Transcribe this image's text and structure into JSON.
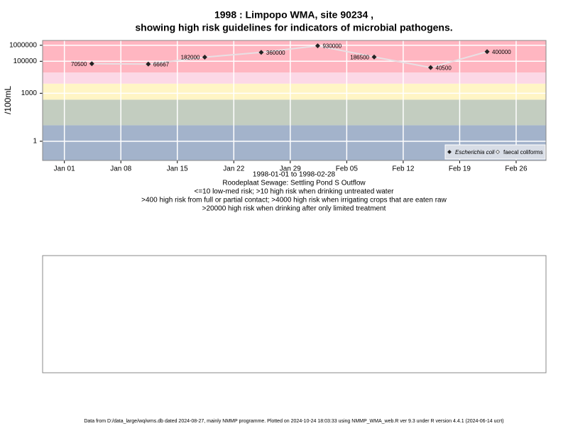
{
  "chart_data": {
    "type": "line",
    "title": "1998 : Limpopo WMA, site 90234 ,",
    "subtitle": "showing high risk guidelines for indicators of microbial pathogens.",
    "y_label": "/100mL",
    "x_label_lines": [
      "1998-01-01 to 1998-02-28",
      "Roodeplaat Sewage: Settling Pond S Outflow",
      "<=10 low-med risk; >10 high risk when drinking untreated water",
      ">400 high risk from full or partial contact; >4000 high risk when irrigating crops that are eaten raw",
      ">20000 high risk when drinking after only limited treatment"
    ],
    "log_y": true,
    "grid": true,
    "legend_position": "bottom-right",
    "x": [
      4.4,
      11.4,
      18.4,
      25.4,
      32.4,
      39.4,
      46.4,
      53.4
    ],
    "xlim": [
      -1.7,
      60.7
    ],
    "xticks": [
      {
        "value": 1,
        "label": "Jan 01"
      },
      {
        "value": 8,
        "label": "Jan 08"
      },
      {
        "value": 15,
        "label": "Jan 15"
      },
      {
        "value": 22,
        "label": "Jan 22"
      },
      {
        "value": 29,
        "label": "Jan 29"
      },
      {
        "value": 36,
        "label": "Feb 05"
      },
      {
        "value": 43,
        "label": "Feb 12"
      },
      {
        "value": 50,
        "label": "Feb 19"
      },
      {
        "value": 57,
        "label": "Feb 26"
      }
    ],
    "ylim": [
      0.063,
      2000000
    ],
    "yticks": [
      1,
      1000,
      100000,
      1000000
    ],
    "band_edges": [
      10,
      400,
      4000,
      20000
    ],
    "band_colors": [
      "#a3b3cb",
      "#c3cdc0",
      "#fff5c5",
      "#fcd8e6",
      "#ffb6c1"
    ],
    "series": [
      {
        "name": "Escherichia coli",
        "color": "#222222",
        "line_color": "#e8e0e4",
        "values": [
          70500,
          66667,
          182000,
          360000,
          930000,
          186500,
          40500,
          400000
        ]
      },
      {
        "name": "faecal coliforms",
        "color": "#222222",
        "values": [
          null,
          null,
          null,
          null,
          null,
          null,
          null,
          null
        ]
      }
    ],
    "footer": "Data from D:/data_large/wq/wms.db dated 2024-08-27, mainly NMMP programme. Plotted on 2024-10-24 18:03:33 using NMMP_WMA_web.R ver 9.3 under R version 4.4.1 (2024-06-14 ucrt)"
  }
}
